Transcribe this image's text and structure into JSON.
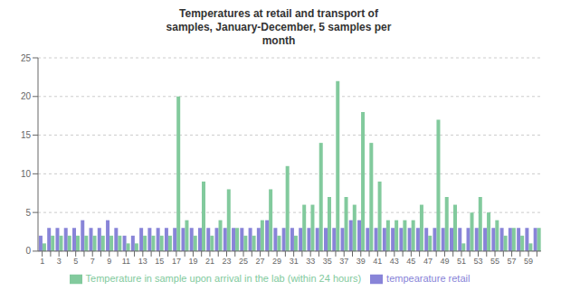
{
  "chart_data": {
    "type": "bar",
    "title": "Temperatures at retail and transport of\nsamples, January-December, 5 samples per\nmonth",
    "categories": [
      "1",
      null,
      "3",
      null,
      "5",
      null,
      "7",
      null,
      "9",
      null,
      "11",
      null,
      "13",
      null,
      "15",
      null,
      "17",
      null,
      "19",
      null,
      "21",
      null,
      "23",
      null,
      "25",
      null,
      "27",
      null,
      "29",
      null,
      "31",
      null,
      "33",
      null,
      "35",
      null,
      "37",
      null,
      "39",
      null,
      "41",
      null,
      "43",
      null,
      "45",
      null,
      "47",
      null,
      "49",
      null,
      "51",
      null,
      "53",
      null,
      "55",
      null,
      "57",
      null,
      "59",
      null
    ],
    "series": [
      {
        "name": "tempearature retail",
        "color": "#8884d8",
        "values": [
          2,
          3,
          3,
          3,
          3,
          4,
          3,
          3,
          4,
          3,
          2,
          2,
          3,
          3,
          3,
          3,
          3,
          3,
          3,
          3,
          3,
          3,
          3,
          3,
          3,
          3,
          3,
          4,
          3,
          3,
          3,
          3,
          3,
          3,
          3,
          3,
          3,
          4,
          4,
          3,
          3,
          3,
          3,
          3,
          3,
          3,
          3,
          3,
          3,
          3,
          3,
          3,
          3,
          3,
          3,
          3,
          3,
          3,
          3,
          3
        ]
      },
      {
        "name": "Temperature in sample upon arrival in the lab (within 24 hours)",
        "color": "#82ca9d",
        "values": [
          1,
          2,
          2,
          2,
          2,
          2,
          2,
          2,
          2,
          2,
          1,
          1,
          2,
          2,
          2,
          2,
          20,
          4,
          2,
          9,
          2,
          4,
          8,
          3,
          2,
          2,
          4,
          8,
          2,
          11,
          2,
          6,
          6,
          14,
          7,
          22,
          7,
          6,
          18,
          14,
          9,
          4,
          4,
          4,
          4,
          6,
          2,
          17,
          7,
          6,
          1,
          5,
          7,
          5,
          4,
          2,
          3,
          2,
          1,
          3
        ]
      }
    ],
    "ylim": [
      0,
      25
    ],
    "yticks": [
      0,
      5,
      10,
      15,
      20,
      25
    ],
    "grid": true,
    "legend": "bottom"
  }
}
